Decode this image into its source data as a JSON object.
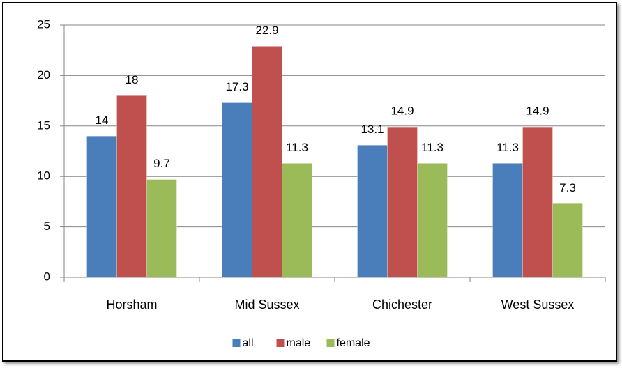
{
  "chart_data": {
    "type": "bar",
    "categories": [
      "Horsham",
      "Mid Sussex",
      "Chichester",
      "West Sussex"
    ],
    "series": [
      {
        "name": "all",
        "color": "#4a7ebb",
        "values": [
          14,
          17.3,
          13.1,
          11.3
        ]
      },
      {
        "name": "male",
        "color": "#c0504d",
        "values": [
          18,
          22.9,
          14.9,
          14.9
        ]
      },
      {
        "name": "female",
        "color": "#9bbb59",
        "values": [
          9.7,
          11.3,
          11.3,
          7.3
        ]
      }
    ],
    "ylim": [
      0,
      25
    ],
    "yticks": [
      0,
      5,
      10,
      15,
      20,
      25
    ],
    "grid": true,
    "legend": "bottom"
  }
}
